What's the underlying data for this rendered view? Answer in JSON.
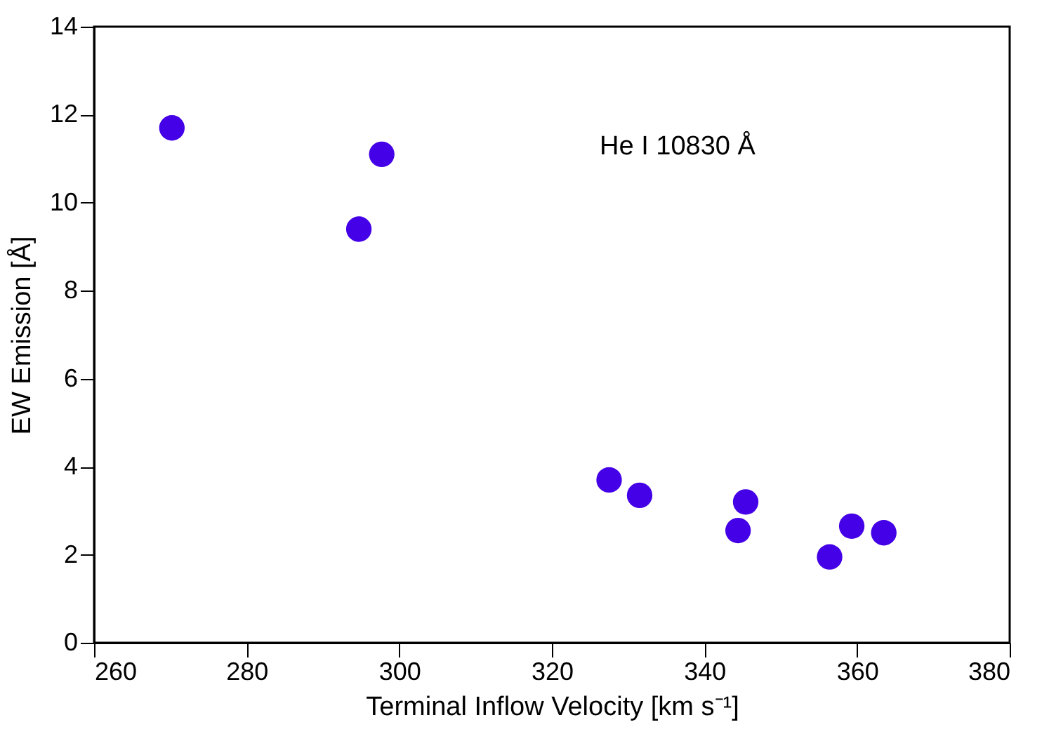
{
  "chart_data": {
    "type": "scatter",
    "xlabel": "Terminal Inflow Velocity  [km s⁻¹]",
    "ylabel": "EW Emission [Å]",
    "annotations": [
      "He I 10830 Å"
    ],
    "x": [
      270.2,
      297.7,
      294.7,
      327.5,
      331.5,
      345.4,
      344.4,
      356.4,
      359.3,
      363.5
    ],
    "series": [
      {
        "color": "#4400e6",
        "values": [
          11.7,
          11.1,
          9.4,
          3.7,
          3.35,
          3.2,
          2.55,
          1.95,
          2.65,
          2.5
        ]
      }
    ],
    "marker": "circle",
    "xlim": [
      260,
      380
    ],
    "xticks": [
      260,
      280,
      300,
      320,
      340,
      360,
      380
    ],
    "ylim": [
      0,
      14
    ],
    "yticks": [
      0,
      2,
      4,
      6,
      8,
      10,
      12,
      14
    ],
    "grid": false
  }
}
